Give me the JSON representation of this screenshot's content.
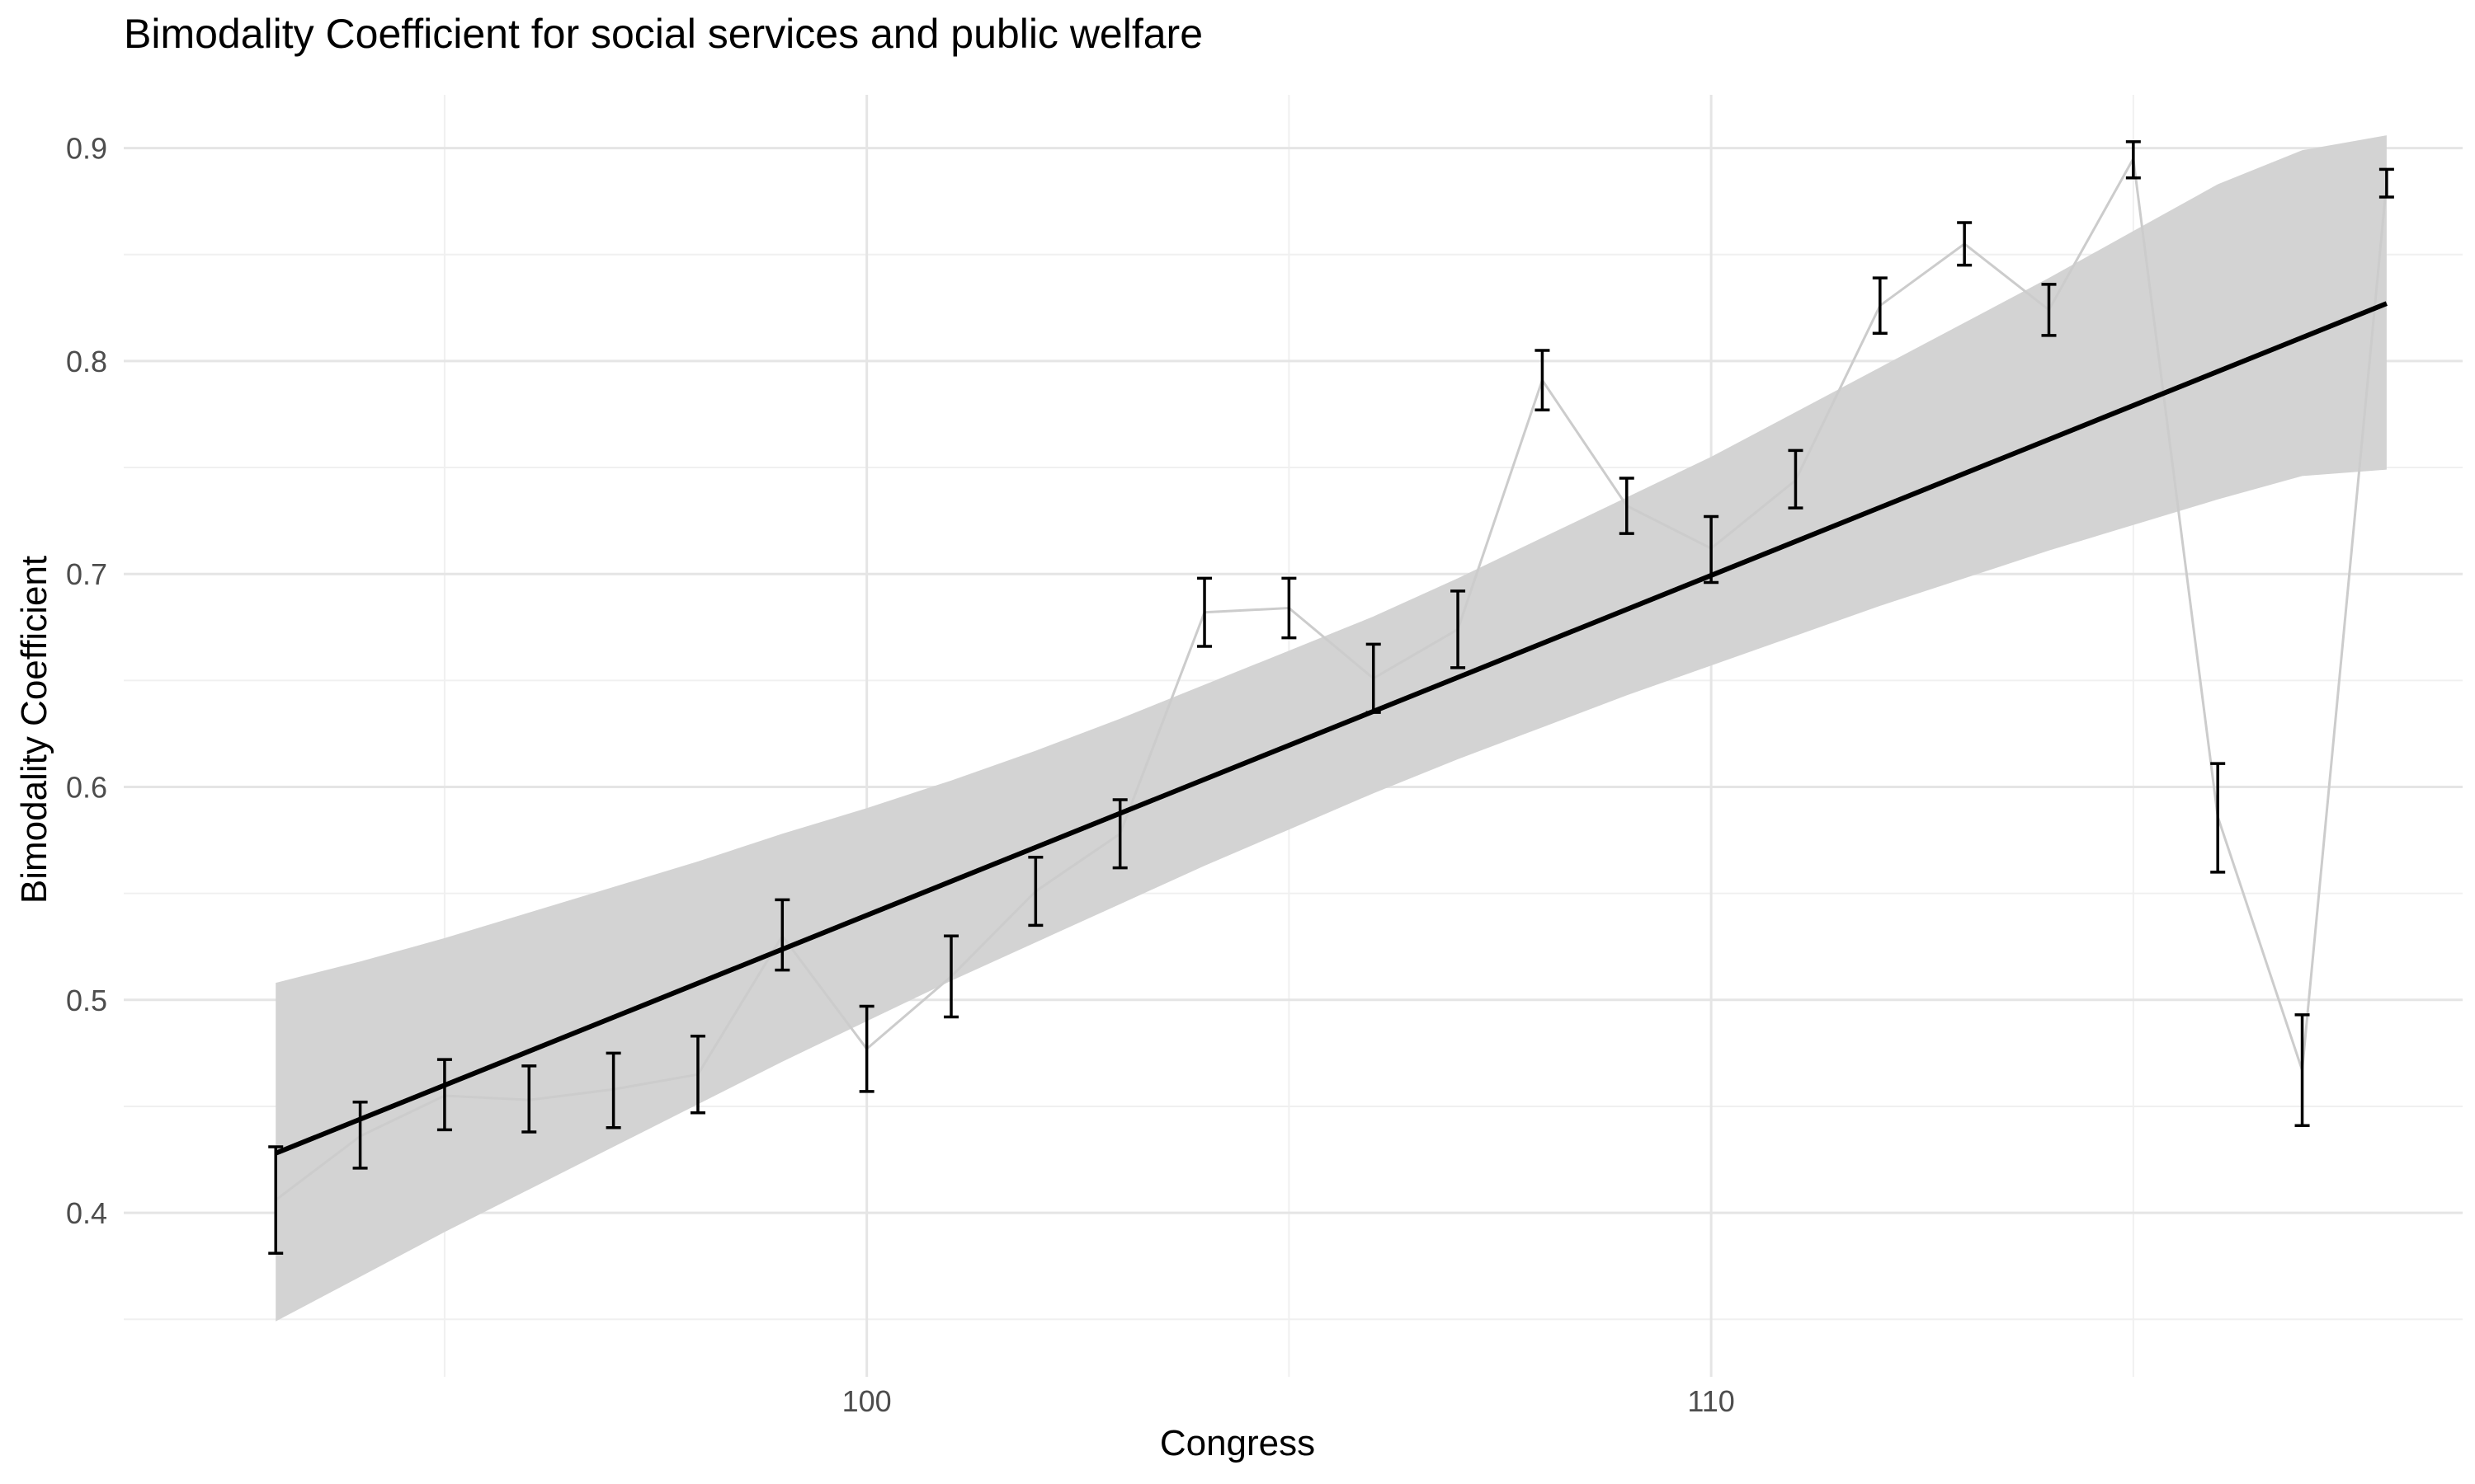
{
  "chart_data": {
    "type": "line",
    "title": "Bimodality Coefficient for social services and public welfare",
    "xlabel": "Congress",
    "ylabel": "Bimodality Coefficient",
    "xlim": [
      91.2,
      118.9
    ],
    "ylim": [
      0.323,
      0.925
    ],
    "x_ticks": [
      100,
      110
    ],
    "x_tick_labels": [
      "100",
      "110"
    ],
    "y_ticks": [
      0.4,
      0.5,
      0.6,
      0.7,
      0.8,
      0.9
    ],
    "y_tick_labels": [
      "0.4",
      "0.5",
      "0.6",
      "0.7",
      "0.8",
      "0.9"
    ],
    "grid": true,
    "colors": {
      "line": "#cccccc",
      "errorbar": "#000000",
      "trend": "#000000",
      "ribbon": "#d3d3d3",
      "grid_major": "#e5e5e5",
      "grid_minor": "#f0f0f0",
      "tick_text": "#4d4d4d"
    },
    "series": [
      {
        "x": [
          93,
          94,
          95,
          96,
          97,
          98,
          99,
          100,
          101,
          102,
          103,
          104,
          105,
          106,
          107,
          108,
          109,
          110,
          111,
          112,
          113,
          114,
          115,
          116,
          117,
          118
        ],
        "y": [
          0.406,
          0.436,
          0.455,
          0.453,
          0.458,
          0.465,
          0.53,
          0.477,
          0.511,
          0.551,
          0.578,
          0.682,
          0.684,
          0.651,
          0.674,
          0.791,
          0.732,
          0.712,
          0.744,
          0.826,
          0.855,
          0.824,
          0.895,
          0.586,
          0.467,
          0.884
        ],
        "ymin": [
          0.381,
          0.421,
          0.439,
          0.438,
          0.44,
          0.447,
          0.514,
          0.457,
          0.492,
          0.535,
          0.562,
          0.666,
          0.67,
          0.635,
          0.656,
          0.777,
          0.719,
          0.696,
          0.731,
          0.813,
          0.845,
          0.812,
          0.886,
          0.56,
          0.441,
          0.877
        ],
        "ymax": [
          0.431,
          0.452,
          0.472,
          0.469,
          0.475,
          0.483,
          0.547,
          0.497,
          0.53,
          0.567,
          0.594,
          0.698,
          0.698,
          0.667,
          0.692,
          0.805,
          0.745,
          0.727,
          0.758,
          0.839,
          0.865,
          0.836,
          0.903,
          0.611,
          0.493,
          0.89
        ]
      }
    ],
    "trend": {
      "x": [
        93,
        118
      ],
      "y": [
        0.428,
        0.827
      ]
    },
    "ribbon": {
      "x": [
        93,
        94,
        95,
        96,
        97,
        98,
        99,
        100,
        101,
        102,
        103,
        104,
        105,
        106,
        107,
        108,
        109,
        110,
        111,
        112,
        113,
        114,
        115,
        116,
        117,
        118
      ],
      "lower": [
        0.349,
        0.37,
        0.391,
        0.411,
        0.431,
        0.451,
        0.471,
        0.49,
        0.509,
        0.527,
        0.545,
        0.563,
        0.58,
        0.597,
        0.613,
        0.628,
        0.643,
        0.657,
        0.671,
        0.685,
        0.698,
        0.711,
        0.723,
        0.735,
        0.746,
        0.749
      ],
      "upper": [
        0.508,
        0.518,
        0.529,
        0.541,
        0.553,
        0.565,
        0.578,
        0.59,
        0.603,
        0.617,
        0.632,
        0.648,
        0.664,
        0.68,
        0.698,
        0.717,
        0.736,
        0.755,
        0.776,
        0.797,
        0.818,
        0.839,
        0.861,
        0.883,
        0.899,
        0.906
      ]
    }
  }
}
